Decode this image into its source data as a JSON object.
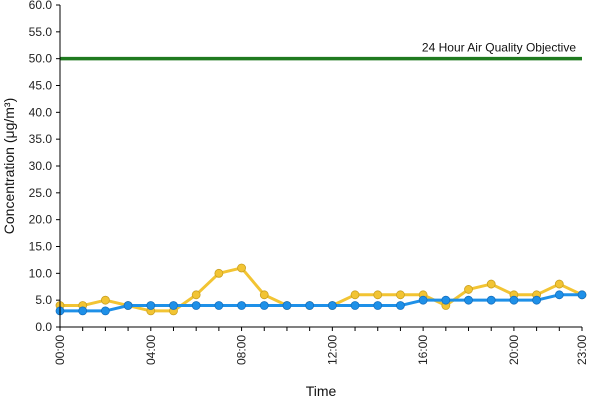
{
  "chart_data": {
    "type": "line",
    "title": "",
    "xlabel": "Time",
    "ylabel": "Concentration (μg/m³)",
    "ylim": [
      0,
      60
    ],
    "yticks": [
      "0.0",
      "5.0",
      "10.0",
      "15.0",
      "20.0",
      "25.0",
      "30.0",
      "35.0",
      "40.0",
      "45.0",
      "50.0",
      "55.0",
      "60.0"
    ],
    "x": [
      0,
      1,
      2,
      3,
      4,
      5,
      6,
      7,
      8,
      9,
      10,
      11,
      12,
      13,
      14,
      15,
      16,
      17,
      18,
      19,
      20,
      21,
      22,
      23
    ],
    "xticks": [
      {
        "x": 0,
        "label": "00:00"
      },
      {
        "x": 4,
        "label": "04:00"
      },
      {
        "x": 8,
        "label": "08:00"
      },
      {
        "x": 12,
        "label": "12:00"
      },
      {
        "x": 16,
        "label": "16:00"
      },
      {
        "x": 20,
        "label": "20:00"
      },
      {
        "x": 23,
        "label": "23:00"
      }
    ],
    "grid": false,
    "legend": "none",
    "series": [
      {
        "color": "#f2c433",
        "values": [
          4,
          4,
          5,
          4,
          3,
          3,
          6,
          10,
          11,
          6,
          4,
          4,
          4,
          6,
          6,
          6,
          6,
          4,
          7,
          8,
          6,
          6,
          8,
          6
        ]
      },
      {
        "color": "#1e90e8",
        "values": [
          3,
          3,
          3,
          4,
          4,
          4,
          4,
          4,
          4,
          4,
          4,
          4,
          4,
          4,
          4,
          4,
          5,
          5,
          5,
          5,
          5,
          5,
          6,
          6
        ]
      }
    ],
    "reference_line": {
      "value": 50,
      "label": "24 Hour Air Quality Objective",
      "color": "#1f7a1f"
    }
  }
}
